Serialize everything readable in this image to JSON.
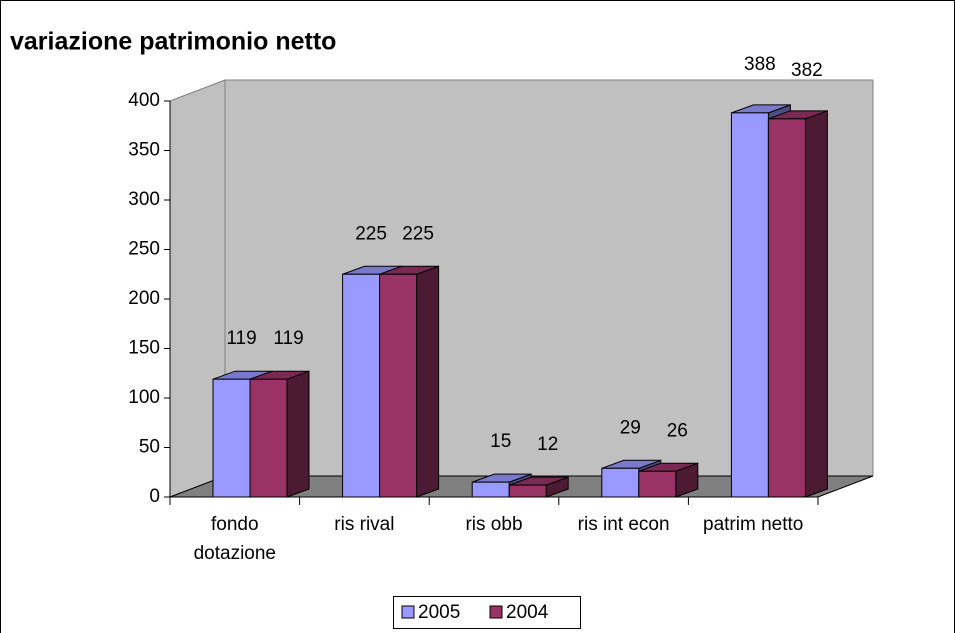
{
  "chart_data": {
    "type": "bar3d",
    "title": "variazione patrimonio netto",
    "categories": [
      "fondo dotazione",
      "ris rival",
      "ris obb",
      "ris int econ",
      "patrim netto"
    ],
    "series": [
      {
        "name": "2005",
        "color": "#9999ff",
        "values": [
          119,
          225,
          15,
          29,
          388
        ]
      },
      {
        "name": "2004",
        "color": "#993366",
        "values": [
          119,
          225,
          12,
          26,
          382
        ]
      }
    ],
    "ylim": [
      0,
      400
    ],
    "yticks": [
      0,
      50,
      100,
      150,
      200,
      250,
      300,
      350,
      400
    ],
    "grid": false,
    "legend": "bottom"
  }
}
